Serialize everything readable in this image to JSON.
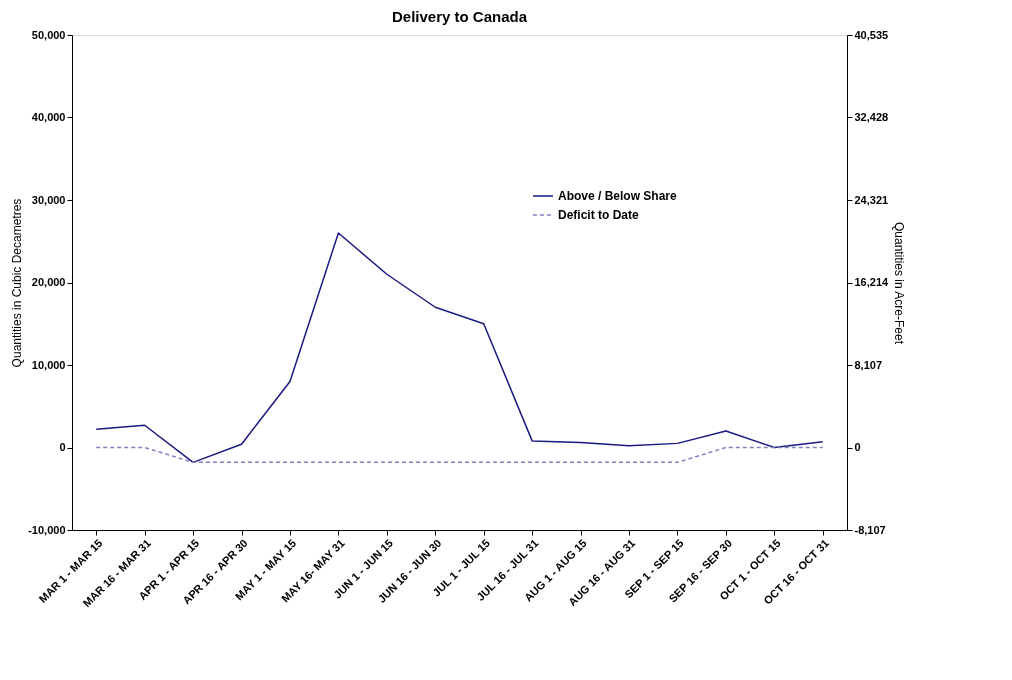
{
  "chart_data": {
    "type": "line",
    "title": "Delivery to Canada",
    "ylabel": "Quantities  in Cubic Decametres",
    "y2label": "Quantities in Acre-Feet",
    "categories": [
      "MAR 1 - MAR 15",
      "MAR 16 - MAR 31",
      "APR 1 - APR 15",
      "APR 16 - APR 30",
      "MAY 1 - MAY 15",
      "MAY 16- MAY 31",
      "JUN 1 - JUN 15",
      "JUN 16 - JUN 30",
      "JUL 1 - JUL 15",
      "JUL 16 - JUL 31",
      "AUG 1 - AUG 15",
      "AUG 16 - AUG 31",
      "SEP 1 - SEP 15",
      "SEP 16 - SEP 30",
      "OCT 1 - OCT 15",
      "OCT 16 - OCT 31"
    ],
    "series": [
      {
        "name": "Above / Below Share",
        "color": "#1a1a80",
        "line_style": "solid",
        "values": [
          2200,
          2700,
          -1800,
          400,
          8000,
          26000,
          21000,
          17000,
          15000,
          800,
          600,
          200,
          500,
          2000,
          0,
          700
        ]
      },
      {
        "name": "Deficit to Date",
        "color": "#8080c0",
        "line_style": "dashed",
        "values": [
          0,
          0,
          -1800,
          -1800,
          -1800,
          -1800,
          -1800,
          -1800,
          -1800,
          -1800,
          -1800,
          -1800,
          -1800,
          0,
          0,
          0
        ]
      }
    ],
    "ylim": [
      -10000,
      50000
    ],
    "yticks": [
      {
        "value": -10000,
        "label": "-10,000"
      },
      0,
      {
        "value": 10000,
        "label": "10,000"
      },
      {
        "value": 20000,
        "label": "20,000"
      },
      {
        "value": 30000,
        "label": "30,000"
      },
      {
        "value": 40000,
        "label": "40,000"
      },
      {
        "value": 50000,
        "label": "50,000"
      }
    ],
    "y2lim": [
      -8107,
      40535
    ],
    "y2ticks": [
      {
        "value": -8107,
        "label": "-8,107"
      },
      0,
      {
        "value": 8107,
        "label": "8,107"
      },
      {
        "value": 16214,
        "label": "16,214"
      },
      {
        "value": 24321,
        "label": "24,321"
      },
      {
        "value": 32428,
        "label": "32,428"
      },
      {
        "value": 40535,
        "label": "40,535"
      }
    ],
    "grid": false,
    "legend": "top right",
    "marker": "none"
  }
}
